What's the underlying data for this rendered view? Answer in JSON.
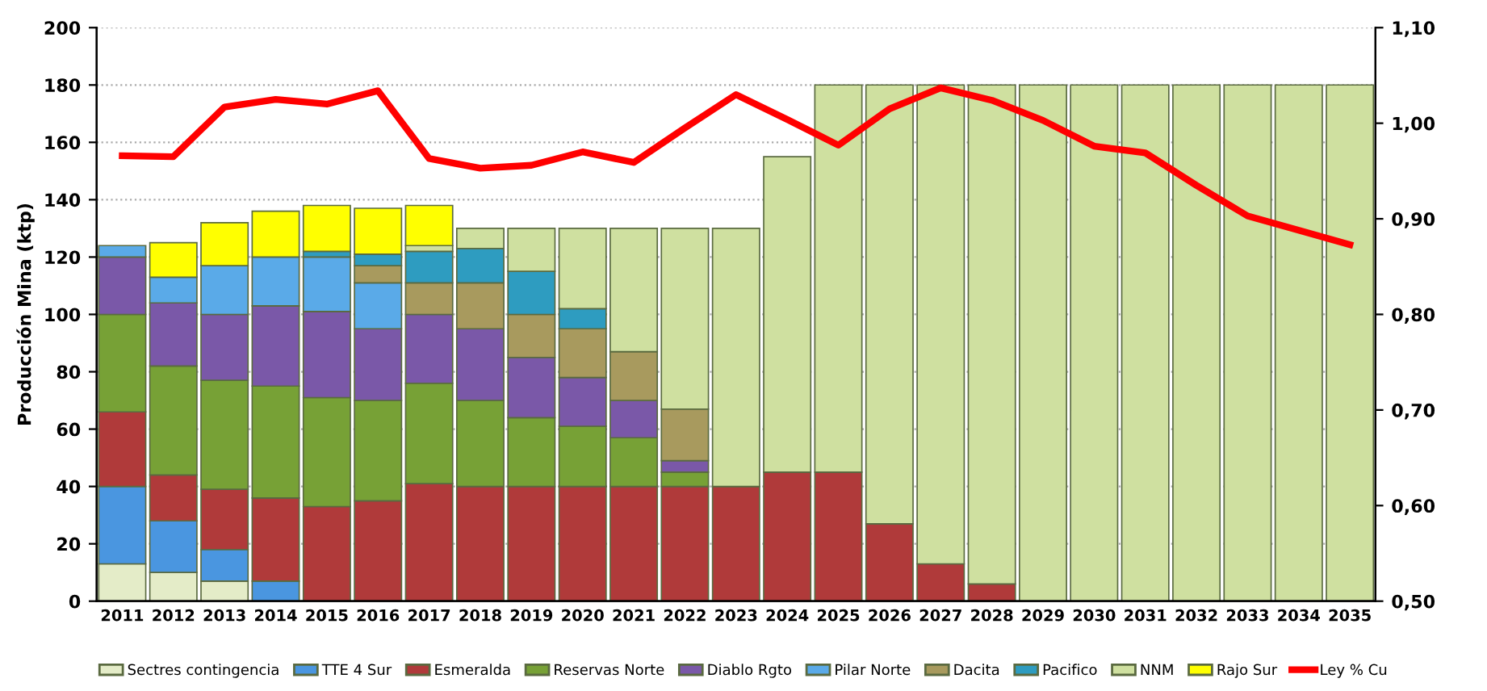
{
  "chart_data": {
    "type": "bar",
    "stacked": true,
    "ylabel": "Producción Mina (ktp)",
    "categories": [
      "2011",
      "2012",
      "2013",
      "2014",
      "2015",
      "2016",
      "2017",
      "2018",
      "2019",
      "2020",
      "2021",
      "2022",
      "2023",
      "2024",
      "2025",
      "2026",
      "2027",
      "2028",
      "2029",
      "2030",
      "2031",
      "2032",
      "2033",
      "2034",
      "2035"
    ],
    "series": [
      {
        "name": "Sectres contingencia",
        "color": "#e4ecc8",
        "values": [
          13,
          10,
          7,
          0,
          0,
          0,
          0,
          0,
          0,
          0,
          0,
          0,
          0,
          0,
          0,
          0,
          0,
          0,
          0,
          0,
          0,
          0,
          0,
          0,
          0
        ]
      },
      {
        "name": "TTE 4 Sur",
        "color": "#4a96e0",
        "values": [
          27,
          18,
          11,
          7,
          0,
          0,
          0,
          0,
          0,
          0,
          0,
          0,
          0,
          0,
          0,
          0,
          0,
          0,
          0,
          0,
          0,
          0,
          0,
          0,
          0
        ]
      },
      {
        "name": "Esmeralda",
        "color": "#b03a3a",
        "values": [
          26,
          16,
          21,
          29,
          33,
          35,
          41,
          40,
          40,
          40,
          40,
          40,
          40,
          45,
          45,
          27,
          13,
          6,
          0,
          0,
          0,
          0,
          0,
          0,
          0
        ]
      },
      {
        "name": "Reservas Norte",
        "color": "#77a136",
        "values": [
          34,
          38,
          38,
          39,
          38,
          35,
          35,
          30,
          24,
          21,
          17,
          5,
          0,
          0,
          0,
          0,
          0,
          0,
          0,
          0,
          0,
          0,
          0,
          0,
          0
        ]
      },
      {
        "name": "Diablo Rgto",
        "color": "#7a58a8",
        "values": [
          20,
          22,
          23,
          28,
          30,
          25,
          24,
          25,
          21,
          17,
          13,
          4,
          0,
          0,
          0,
          0,
          0,
          0,
          0,
          0,
          0,
          0,
          0,
          0,
          0
        ]
      },
      {
        "name": "Pilar Norte",
        "color": "#5aaae8",
        "values": [
          4,
          9,
          17,
          17,
          19,
          16,
          0,
          0,
          0,
          0,
          0,
          0,
          0,
          0,
          0,
          0,
          0,
          0,
          0,
          0,
          0,
          0,
          0,
          0,
          0
        ]
      },
      {
        "name": "Dacita",
        "color": "#a89a5e",
        "values": [
          0,
          0,
          0,
          0,
          0,
          6,
          11,
          16,
          15,
          17,
          17,
          18,
          0,
          0,
          0,
          0,
          0,
          0,
          0,
          0,
          0,
          0,
          0,
          0,
          0
        ]
      },
      {
        "name": "Pacifico",
        "color": "#2e9cc0",
        "values": [
          0,
          0,
          0,
          0,
          2,
          4,
          11,
          12,
          15,
          7,
          0,
          0,
          0,
          0,
          0,
          0,
          0,
          0,
          0,
          0,
          0,
          0,
          0,
          0,
          0
        ]
      },
      {
        "name": "NNM",
        "color": "#cfe0a0",
        "values": [
          0,
          0,
          0,
          0,
          0,
          0,
          2,
          7,
          15,
          28,
          43,
          63,
          90,
          110,
          135,
          153,
          167,
          174,
          180,
          180,
          180,
          180,
          180,
          180,
          180
        ]
      },
      {
        "name": "Rajo Sur",
        "color": "#ffff00",
        "values": [
          0,
          12,
          15,
          16,
          16,
          16,
          14,
          0,
          0,
          0,
          0,
          0,
          0,
          0,
          0,
          0,
          0,
          0,
          0,
          0,
          0,
          0,
          0,
          0,
          0
        ]
      },
      {
        "name": "Ley % Cu",
        "type": "line",
        "axis": "y2",
        "color": "#ff0000",
        "values": [
          0.966,
          0.965,
          1.017,
          1.025,
          1.02,
          1.034,
          0.963,
          0.953,
          0.956,
          0.97,
          0.959,
          0.995,
          1.03,
          1.004,
          0.977,
          1.015,
          1.037,
          1.024,
          1.003,
          0.976,
          0.969,
          0.935,
          0.903,
          0.888,
          0.873
        ]
      }
    ],
    "ylim": [
      0,
      200
    ],
    "yticks": [
      0,
      20,
      40,
      60,
      80,
      100,
      120,
      140,
      160,
      180,
      200
    ],
    "y2lim": [
      0.5,
      1.1
    ],
    "y2ticks": [
      {
        "value": 0.5,
        "label": "0,50"
      },
      {
        "value": 0.6,
        "label": "0,60"
      },
      {
        "value": 0.7,
        "label": "0,70"
      },
      {
        "value": 0.8,
        "label": "0,80"
      },
      {
        "value": 0.9,
        "label": "0,90"
      },
      {
        "value": 1.0,
        "label": "1,00"
      },
      {
        "value": 1.1,
        "label": "1,10"
      }
    ],
    "grid": "y",
    "legend": "bottom"
  }
}
